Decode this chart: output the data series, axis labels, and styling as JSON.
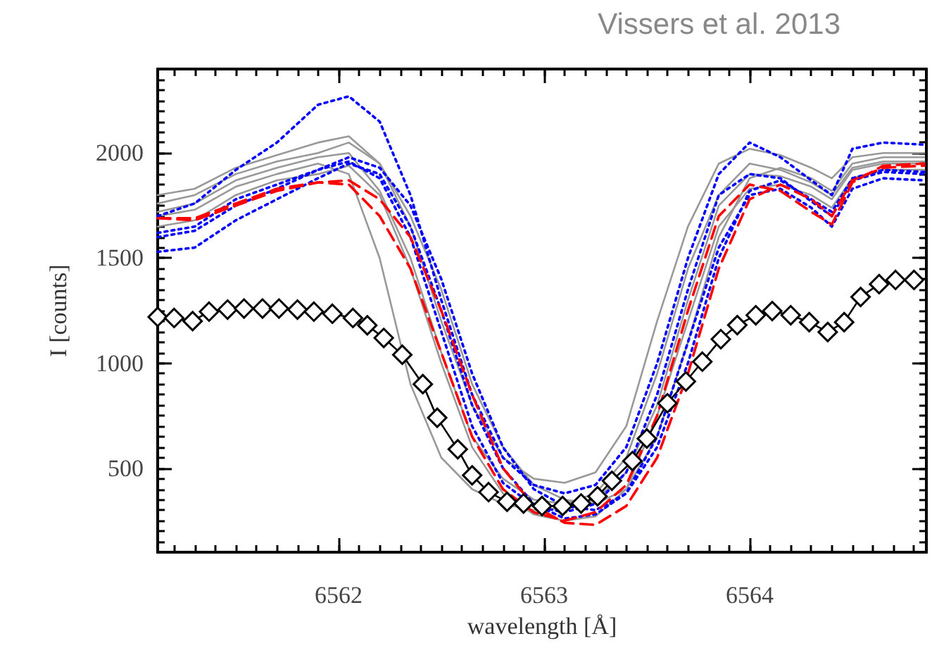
{
  "chart_data": {
    "type": "line",
    "title": "Vissers et al. 2013",
    "xlabel": "wavelength [Å]",
    "ylabel": "I [counts]",
    "xlim": [
      6561.12,
      6564.86
    ],
    "ylim": [
      100,
      2400
    ],
    "xticks": [
      6562,
      6563,
      6564
    ],
    "yticks": [
      500,
      1000,
      1500,
      2000
    ],
    "grid": false,
    "marker": "none",
    "line_style": "solid",
    "x": [
      6561.12,
      6561.3,
      6561.5,
      6561.7,
      6561.9,
      6562.05,
      6562.2,
      6562.35,
      6562.5,
      6562.65,
      6562.8,
      6562.95,
      6563.1,
      6563.25,
      6563.4,
      6563.55,
      6563.7,
      6563.85,
      6564.0,
      6564.15,
      6564.3,
      6564.4,
      6564.5,
      6564.65,
      6564.85
    ],
    "series": [
      {
        "color": "#999999",
        "values": [
          1800,
          1830,
          1930,
          1990,
          2050,
          2080,
          1950,
          1650,
          1200,
          800,
          550,
          450,
          430,
          480,
          700,
          1200,
          1650,
          1950,
          2020,
          1990,
          1930,
          1880,
          1980,
          2000,
          2000
        ]
      },
      {
        "color": "#999999",
        "values": [
          1720,
          1760,
          1870,
          1930,
          1980,
          2000,
          1820,
          1500,
          1050,
          650,
          450,
          350,
          330,
          380,
          550,
          950,
          1450,
          1800,
          1950,
          1920,
          1860,
          1800,
          1930,
          1960,
          1960
        ]
      },
      {
        "color": "#999999",
        "values": [
          1700,
          1730,
          1840,
          1900,
          1950,
          1900,
          1500,
          900,
          550,
          400,
          330,
          300,
          310,
          350,
          480,
          800,
          1300,
          1750,
          1900,
          1890,
          1840,
          1780,
          1920,
          1950,
          1950
        ]
      },
      {
        "color": "#999999",
        "values": [
          1760,
          1800,
          1900,
          1960,
          2000,
          2050,
          1950,
          1700,
          1350,
          900,
          600,
          420,
          350,
          330,
          400,
          650,
          1100,
          1600,
          1880,
          1930,
          1880,
          1820,
          1950,
          1980,
          1980
        ]
      },
      {
        "color": "#999999",
        "values": [
          1650,
          1680,
          1800,
          1870,
          1900,
          1940,
          1800,
          1450,
          1000,
          600,
          380,
          280,
          250,
          270,
          400,
          750,
          1200,
          1650,
          1830,
          1850,
          1800,
          1740,
          1880,
          1920,
          1920
        ]
      },
      {
        "color": "#0000ff",
        "line_style": "dotted",
        "values": [
          1700,
          1760,
          1920,
          2050,
          2230,
          2270,
          2150,
          1800,
          1300,
          850,
          550,
          420,
          380,
          420,
          600,
          1000,
          1500,
          1900,
          2050,
          1980,
          1870,
          1800,
          2020,
          2050,
          2040
        ]
      },
      {
        "color": "#0000ff",
        "line_style": "dotted",
        "values": [
          1530,
          1550,
          1680,
          1780,
          1880,
          1950,
          1900,
          1650,
          1250,
          800,
          500,
          330,
          260,
          280,
          380,
          650,
          1100,
          1550,
          1800,
          1830,
          1740,
          1650,
          1830,
          1880,
          1870
        ]
      },
      {
        "color": "#0000ff",
        "line_style": "dotted",
        "values": [
          1600,
          1630,
          1750,
          1830,
          1920,
          1960,
          1880,
          1600,
          1150,
          700,
          430,
          320,
          290,
          330,
          480,
          850,
          1350,
          1800,
          1900,
          1880,
          1770,
          1700,
          1870,
          1910,
          1900
        ]
      },
      {
        "color": "#0000ff",
        "line_style": "dotted",
        "values": [
          1620,
          1650,
          1780,
          1850,
          1920,
          1980,
          1930,
          1750,
          1400,
          950,
          600,
          400,
          320,
          300,
          380,
          600,
          1000,
          1500,
          1820,
          1870,
          1780,
          1720,
          1880,
          1920,
          1910
        ]
      },
      {
        "color": "#ff0000",
        "line_style": "dashed",
        "values": [
          1690,
          1690,
          1760,
          1830,
          1860,
          1850,
          1700,
          1450,
          1050,
          650,
          400,
          290,
          250,
          290,
          420,
          750,
          1250,
          1700,
          1850,
          1820,
          1720,
          1660,
          1860,
          1940,
          1950
        ]
      },
      {
        "color": "#ff0000",
        "line_style": "dashed",
        "values": [
          1690,
          1680,
          1750,
          1820,
          1860,
          1870,
          1780,
          1600,
          1250,
          850,
          500,
          320,
          240,
          230,
          320,
          550,
          950,
          1450,
          1780,
          1850,
          1780,
          1700,
          1870,
          1930,
          1940
        ]
      },
      {
        "color": "#000000",
        "marker": "diamond",
        "x": [
          6561.12,
          6561.2,
          6561.29,
          6561.37,
          6561.46,
          6561.54,
          6561.63,
          6561.71,
          6561.8,
          6561.88,
          6561.97,
          6562.07,
          6562.14,
          6562.22,
          6562.31,
          6562.41,
          6562.48,
          6562.58,
          6562.65,
          6562.73,
          6562.82,
          6562.9,
          6562.99,
          6563.09,
          6563.18,
          6563.26,
          6563.33,
          6563.43,
          6563.5,
          6563.6,
          6563.69,
          6563.77,
          6563.86,
          6563.94,
          6564.03,
          6564.11,
          6564.2,
          6564.29,
          6564.38,
          6564.46,
          6564.54,
          6564.63,
          6564.71,
          6564.8
        ],
        "values": [
          1220,
          1215,
          1200,
          1245,
          1255,
          1260,
          1260,
          1260,
          1255,
          1245,
          1235,
          1215,
          1180,
          1120,
          1040,
          900,
          740,
          590,
          466,
          386,
          340,
          332,
          320,
          320,
          332,
          366,
          440,
          534,
          641,
          809,
          913,
          1007,
          1114,
          1181,
          1228,
          1248,
          1228,
          1195,
          1148,
          1195,
          1315,
          1376,
          1396,
          1396
        ]
      }
    ]
  }
}
